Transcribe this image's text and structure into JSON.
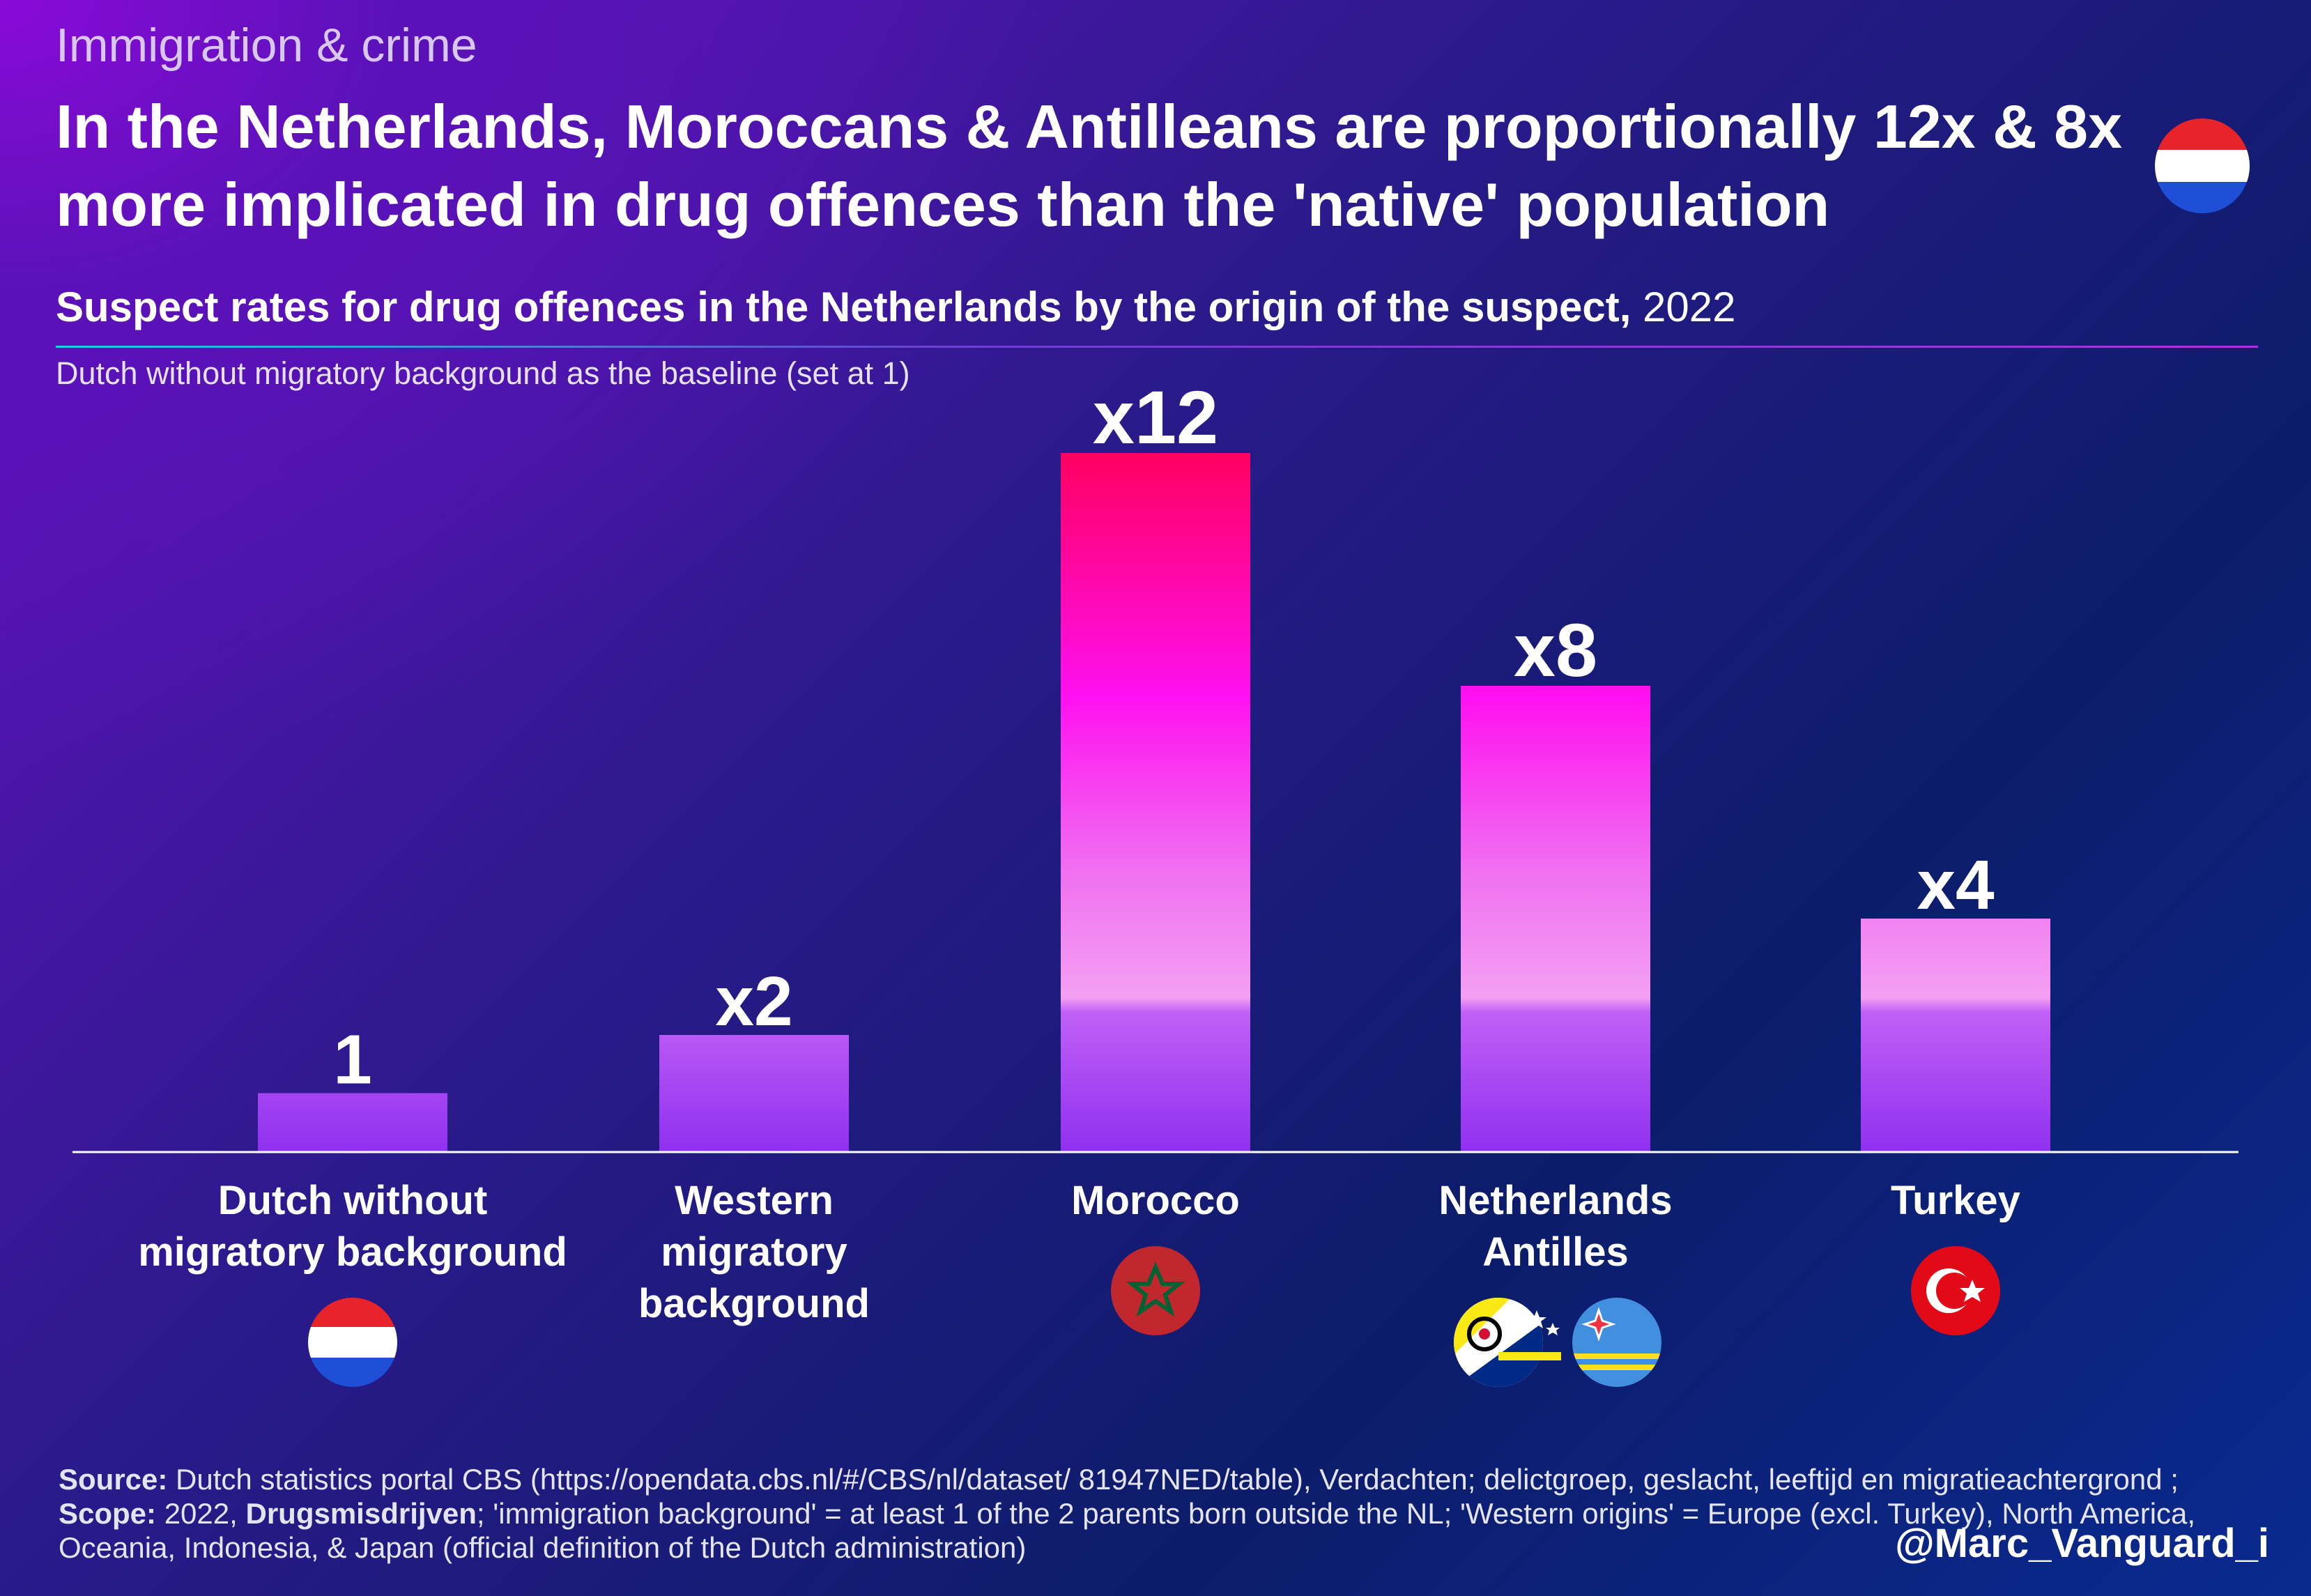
{
  "kicker": "Immigration & crime",
  "headline": "In the Netherlands, Moroccans & Antilleans are proportionally 12x & 8x more implicated in drug offences than the 'native' population",
  "subtitle": {
    "bold": "Suspect rates for drug offences in the Netherlands by the origin of the suspect,",
    "year": " 2022"
  },
  "baseline_note": "Dutch without migratory background as the baseline (set at 1)",
  "colors": {
    "bar_top": "#ff0060",
    "bar_mid": "#ff10f0",
    "bar_low": "#f070f0",
    "bar_bottom": "#9030f0",
    "nl_red": "#e8242a",
    "nl_blue": "#1e4fd6",
    "morocco_red": "#c1272d",
    "morocco_green": "#006233",
    "turkey_red": "#e30a17",
    "aruba_blue": "#418fde",
    "aruba_yellow": "#fbe122"
  },
  "chart_data": {
    "type": "bar",
    "title": "Suspect rates for drug offences in the Netherlands by the origin of the suspect, 2022",
    "ylabel": "",
    "xlabel": "",
    "ylim": [
      0,
      12
    ],
    "categories": [
      {
        "lines": [
          "Dutch without",
          "migratory background"
        ],
        "flag": "netherlands-flag-icon"
      },
      {
        "lines": [
          "Western",
          "migratory",
          "background"
        ],
        "flag": ""
      },
      {
        "lines": [
          "Morocco"
        ],
        "flag": "morocco-flag-icon"
      },
      {
        "lines": [
          "Netherlands",
          "Antilles"
        ],
        "flag": "antilles-flags-icon"
      },
      {
        "lines": [
          "Turkey"
        ],
        "flag": "turkey-flag-icon"
      }
    ],
    "values": [
      1,
      2,
      12,
      8,
      4
    ],
    "data_labels": [
      "1",
      "x2",
      "x12",
      "x8",
      "x4"
    ]
  },
  "footer": {
    "source_label": "Source:",
    "source_text": " Dutch statistics portal CBS (https://opendata.cbs.nl/#/CBS/nl/dataset/ 81947NED/table), Verdachten; delictgroep, geslacht, leeftijd en migratieachtergrond ; ",
    "scope_label": "Scope:",
    "scope_text": " 2022, ",
    "drugs_label": "Drugsmisdrijven",
    "definition_text": "; 'immigration background' = at least 1 of the 2 parents born outside the NL; 'Western origins' = Europe (excl. Turkey), North America, Oceania, Indonesia, & Japan (official definition of the Dutch administration)"
  },
  "handle": "@Marc_Vanguard_i"
}
